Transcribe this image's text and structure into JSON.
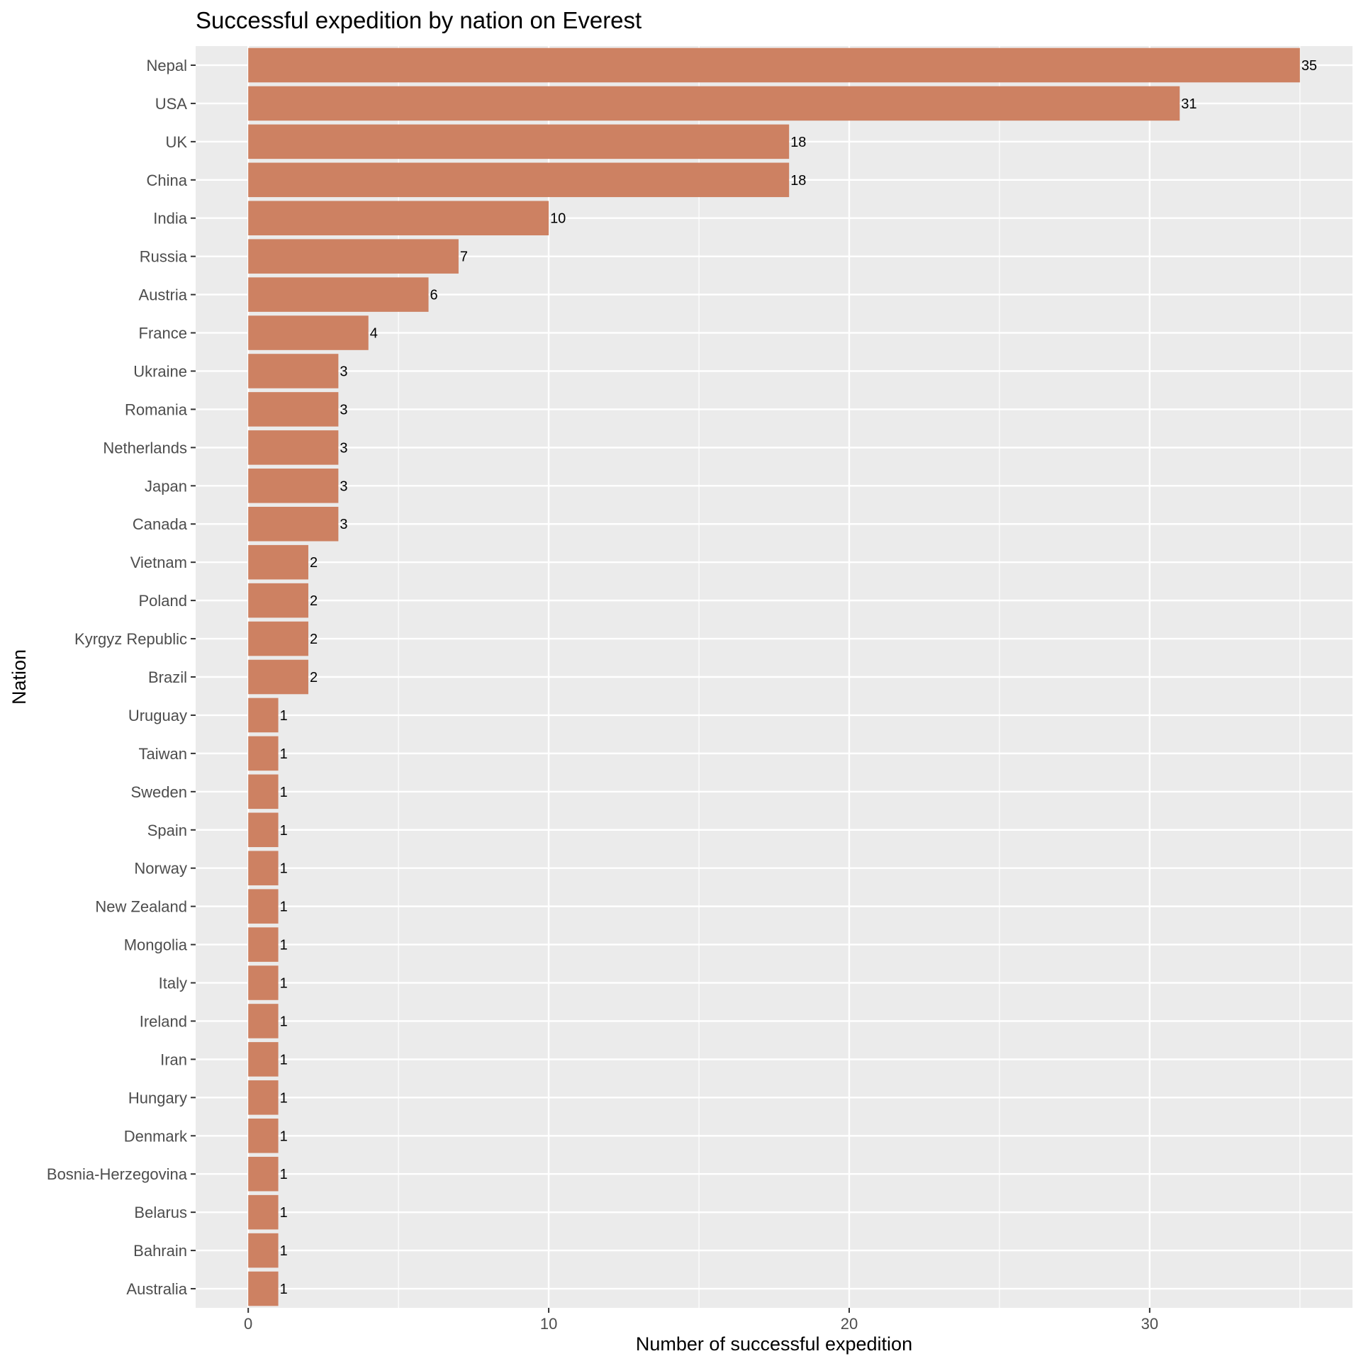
{
  "chart_data": {
    "type": "bar",
    "orientation": "horizontal",
    "title": "Successful expedition by nation on Everest",
    "xlabel": "Number of successful expedition",
    "ylabel": "Nation",
    "categories": [
      "Nepal",
      "USA",
      "UK",
      "China",
      "India",
      "Russia",
      "Austria",
      "France",
      "Ukraine",
      "Romania",
      "Netherlands",
      "Japan",
      "Canada",
      "Vietnam",
      "Poland",
      "Kyrgyz Republic",
      "Brazil",
      "Uruguay",
      "Taiwan",
      "Sweden",
      "Spain",
      "Norway",
      "New Zealand",
      "Mongolia",
      "Italy",
      "Ireland",
      "Iran",
      "Hungary",
      "Denmark",
      "Bosnia-Herzegovina",
      "Belarus",
      "Bahrain",
      "Australia"
    ],
    "values": [
      35,
      31,
      18,
      18,
      10,
      7,
      6,
      4,
      3,
      3,
      3,
      3,
      3,
      2,
      2,
      2,
      2,
      1,
      1,
      1,
      1,
      1,
      1,
      1,
      1,
      1,
      1,
      1,
      1,
      1,
      1,
      1,
      1
    ],
    "data_labels": [
      "35",
      "31",
      "18",
      "18",
      "10",
      "7",
      "6",
      "4",
      "3",
      "3",
      "3",
      "3",
      "3",
      "2",
      "2",
      "2",
      "2",
      "1",
      "1",
      "1",
      "1",
      "1",
      "1",
      "1",
      "1",
      "1",
      "1",
      "1",
      "1",
      "1",
      "1",
      "1",
      "1"
    ],
    "xlim": [
      -1.75,
      36.75
    ],
    "xticks": [
      0,
      10,
      20,
      30
    ],
    "xtick_labels": [
      "0",
      "10",
      "20",
      "30"
    ],
    "x_minor_gridlines": [
      5,
      15,
      25,
      35
    ],
    "grid": true,
    "legend": "none",
    "colors": {
      "bar": "#CD8162",
      "panel_background": "#EBEBEB",
      "gridline": "#FFFFFF",
      "tick_label": "#4D4D4D"
    }
  }
}
